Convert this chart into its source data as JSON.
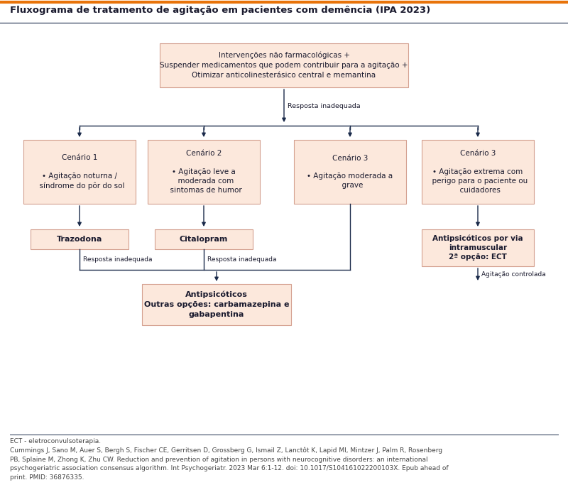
{
  "title": "Fluxograma de tratamento de agitação em pacientes com demência (IPA 2023)",
  "title_color": "#1a1a2e",
  "title_fontsize": 9.5,
  "orange_line_color": "#e8730a",
  "dark_line_color": "#1a2a4a",
  "bg_color": "#ffffff",
  "box_fill_light": "#fce8dc",
  "box_edge_color": "#d4a090",
  "arrow_color": "#1a2a4a",
  "text_color": "#1a1a2e",
  "footnote_color": "#444444",
  "footnote_fontsize": 6.5,
  "small_fontsize": 6.8,
  "footnote_text": "ECT - eletroconvulsoterapia.\nCummings J, Sano M, Auer S, Bergh S, Fischer CE, Gerritsen D, Grossberg G, Ismail Z, Lanctôt K, Lapid MI, Mintzer J, Palm R, Rosenberg\nPB, Splaine M, Zhong K, Zhu CW. Reduction and prevention of agitation in persons with neurocognitive disorders: an international\npsychogeriatric association consensus algorithm. Int Psychogeriatr. 2023 Mar 6:1-12. doi: 10.1017/S104161022200103X. Epub ahead of\nprint. PMID: 36876335.",
  "top_box_text": "Intervenções não farmacológicas +\nSuspender medicamentos que podem contribuir para a agitação +\nOtimizar anticolinesterásico central e memantina",
  "scen1_text": "Cenário 1\n\n• Agitação noturna /\n  síndrome do pôr do sol",
  "scen2_text": "Cenário 2\n\n• Agitação leve a\n  moderada com\n  sintomas de humor",
  "scen3a_text": "Cenário 3\n\n• Agitação moderada a\n  grave",
  "scen3b_text": "Cenário 3\n\n• Agitação extrema com\n  perigo para o paciente ou\n  cuidadores",
  "traz_text": "Trazodona",
  "cital_text": "Citalopram",
  "anti_im_text": "Antipsicóticos por via\nintramuscular\n2ª opção: ECT",
  "final_text": "Antipsicóticos\nOutras opções: carbamazepina e\ngabapentina",
  "resp_inad": "Resposta inadequada",
  "agit_ctrl": "Agitação controlada"
}
